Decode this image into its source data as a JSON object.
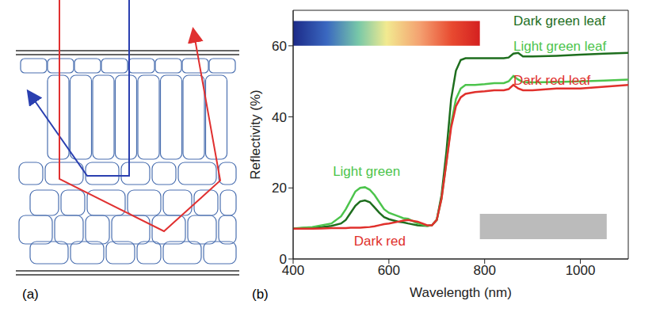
{
  "diagram": {
    "panel_label": "(a)"
  },
  "chart_data": {
    "type": "line",
    "panel_label": "(b)",
    "x_label": "Wavelength (nm)",
    "y_label": "Reflectivity (%)",
    "xlim": [
      400,
      1100
    ],
    "xticks": [
      400,
      600,
      800,
      1000
    ],
    "ylim": [
      0,
      70
    ],
    "yticks": [
      0,
      20,
      40,
      60
    ],
    "grid": false,
    "x": [
      400,
      420,
      440,
      460,
      480,
      500,
      510,
      520,
      530,
      540,
      550,
      560,
      570,
      580,
      590,
      600,
      620,
      630,
      640,
      660,
      680,
      690,
      700,
      710,
      720,
      730,
      740,
      750,
      760,
      780,
      800,
      820,
      840,
      850,
      860,
      870,
      880,
      900,
      950,
      1000,
      1050,
      1100
    ],
    "series": [
      {
        "name": "Dark green leaf",
        "color": "#1e6e1e",
        "label_at": [
          860,
          67.2
        ],
        "values": [
          8.5,
          8.7,
          8.8,
          9,
          9.3,
          10,
          11,
          13,
          15,
          16.2,
          16.5,
          16,
          14.5,
          13,
          11.8,
          11.2,
          10.5,
          10.3,
          10,
          9.5,
          9.3,
          9.5,
          11,
          18,
          30,
          45,
          53,
          56,
          56.5,
          56.5,
          56.5,
          56.5,
          56.5,
          56.7,
          57.8,
          58,
          57,
          57,
          57.2,
          57.5,
          57.8,
          58
        ]
      },
      {
        "name": "Light green leaf",
        "color": "#4cc44c",
        "label_at": [
          860,
          60
        ],
        "values": [
          8.6,
          8.8,
          9,
          9.5,
          10,
          12,
          14,
          16.5,
          19,
          20,
          20.2,
          19.5,
          18,
          16,
          14,
          13,
          12,
          11.5,
          11.3,
          10,
          9.3,
          9.5,
          11,
          17,
          27,
          38,
          45,
          48,
          49,
          49,
          49.2,
          49.5,
          49.5,
          50,
          51.5,
          50.5,
          49.8,
          49.7,
          49.8,
          50,
          50.2,
          50.5
        ]
      },
      {
        "name": "Dark red leaf",
        "color": "#e0302c",
        "label_at": [
          860,
          50.4
        ],
        "values": [
          8.5,
          8.5,
          8.5,
          8.6,
          8.7,
          8.7,
          8.7,
          8.8,
          8.8,
          8.8,
          8.9,
          9,
          9.2,
          9.5,
          9.8,
          10,
          10.5,
          10.8,
          11,
          10.5,
          9.5,
          9.5,
          11,
          17,
          27,
          37,
          43,
          45.5,
          46.5,
          47,
          47.2,
          47.5,
          47.5,
          47.8,
          49,
          48,
          47.5,
          47.5,
          48,
          48,
          48.5,
          49
        ]
      }
    ],
    "annotations": [
      {
        "text": "Light green",
        "x": 483,
        "y": 24.8,
        "color": "#4cc44c"
      },
      {
        "text": "Dark red",
        "x": 527,
        "y": 5.1,
        "color": "#e0302c"
      }
    ],
    "spectrum_band": {
      "x": [
        400,
        790
      ],
      "y": [
        60,
        67
      ]
    },
    "gray_band": {
      "x": [
        790,
        1055
      ],
      "y": [
        5.6,
        12.7
      ],
      "color": "#bbbbbb"
    }
  }
}
